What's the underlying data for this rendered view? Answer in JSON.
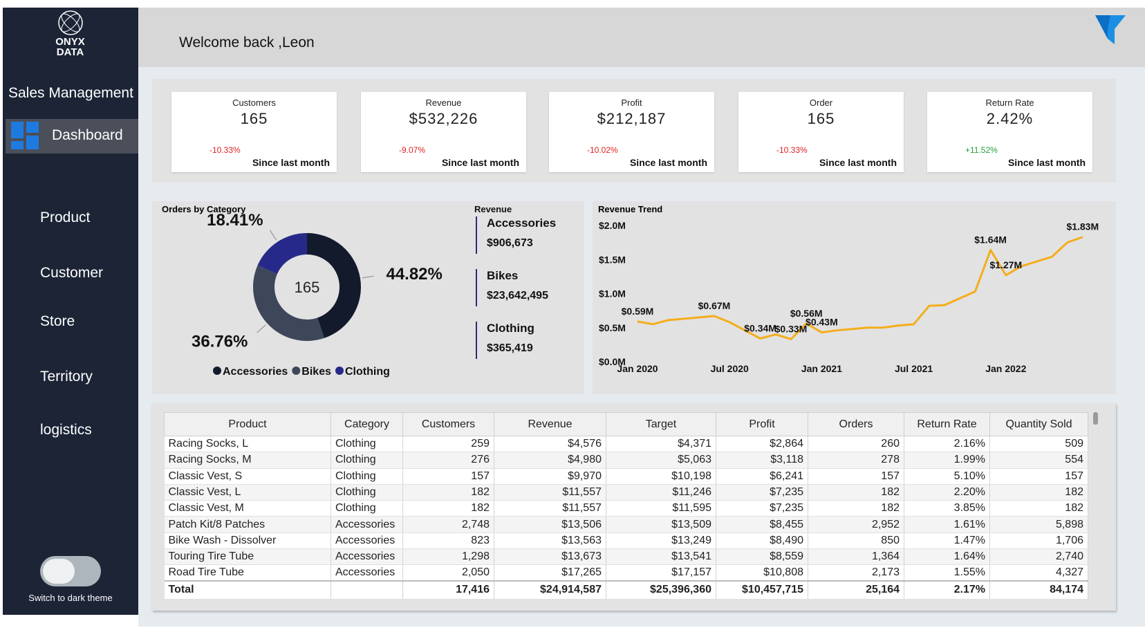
{
  "header": {
    "brand": "ONYX DATA",
    "welcome": "Welcome back ,Leon"
  },
  "sidebar": {
    "title": "Sales Management",
    "active": "Dashboard",
    "items": [
      "Product",
      "Customer",
      "Store",
      "Territory",
      "logistics"
    ],
    "toggle": "Switch to dark theme"
  },
  "kpis": [
    {
      "label": "Customers",
      "value": "165",
      "change": "-10.33%",
      "note": "Since last month"
    },
    {
      "label": "Revenue",
      "value": "$532,226",
      "change": "-9.07%",
      "note": "Since last month"
    },
    {
      "label": "Profit",
      "value": "$212,187",
      "change": "-10.02%",
      "note": "Since last month"
    },
    {
      "label": "Order",
      "value": "165",
      "change": "-10.33%",
      "note": "Since last month"
    },
    {
      "label": "Return Rate",
      "value": "2.42%",
      "change": "+11.52%",
      "note": "Since last month"
    }
  ],
  "revenue_by_category": {
    "title": "Revenue",
    "items": [
      {
        "name": "Accessories",
        "value": "$906,673"
      },
      {
        "name": "Bikes",
        "value": "$23,642,495"
      },
      {
        "name": "Clothing",
        "value": "$365,419"
      }
    ]
  },
  "chart_data": [
    {
      "type": "donut",
      "title": "Orders by Category",
      "center_label": "165",
      "categories": [
        "Accessories",
        "Bikes",
        "Clothing"
      ],
      "values": [
        44.82,
        36.76,
        18.41
      ],
      "value_labels": [
        "44.82%",
        "36.76%",
        "18.41%"
      ],
      "colors": [
        "#131a2c",
        "#3e475a",
        "#27298a"
      ]
    },
    {
      "type": "line",
      "title": "Revenue Trend",
      "color": "#f5ad1b",
      "categories": [
        "Jan 2020",
        null,
        null,
        null,
        null,
        null,
        "Jul 2020",
        null,
        null,
        null,
        null,
        null,
        "Jan 2021",
        null,
        null,
        null,
        null,
        null,
        "Jul 2021",
        null,
        null,
        null,
        null,
        null,
        "Jan 2022",
        null,
        null,
        null,
        null,
        null
      ],
      "values": [
        0.59,
        0.55,
        0.61,
        0.63,
        0.65,
        0.67,
        0.58,
        0.46,
        0.34,
        0.4,
        0.33,
        0.56,
        0.43,
        0.46,
        0.48,
        0.5,
        0.5,
        0.53,
        0.55,
        0.82,
        0.83,
        0.93,
        1.03,
        1.64,
        1.27,
        1.4,
        1.47,
        1.54,
        1.75,
        1.83
      ],
      "value_labels": [
        "$0.59M",
        null,
        null,
        null,
        null,
        "$0.67M",
        null,
        null,
        "$0.34M",
        null,
        "$0.33M",
        "$0.56M",
        "$0.43M",
        null,
        null,
        null,
        null,
        null,
        null,
        null,
        null,
        null,
        null,
        "$1.64M",
        "$1.27M",
        null,
        null,
        null,
        null,
        "$1.83M"
      ],
      "ylim": [
        0,
        2
      ],
      "yticks": [
        {
          "value": 0,
          "label": "$0.0M"
        },
        {
          "value": 0.5,
          "label": "$0.5M"
        },
        {
          "value": 1,
          "label": "$1.0M"
        },
        {
          "value": 1.5,
          "label": "$1.5M"
        },
        {
          "value": 2,
          "label": "$2.0M"
        }
      ]
    }
  ],
  "table": {
    "columns": [
      "Product",
      "Category",
      "Customers",
      "Revenue",
      "Target",
      "Profit",
      "Orders",
      "Return Rate",
      "Quantity Sold"
    ],
    "rows": [
      [
        "Racing Socks, L",
        "Clothing",
        "259",
        "$4,576",
        "$4,371",
        "$2,864",
        "260",
        "2.16%",
        "509"
      ],
      [
        "Racing Socks, M",
        "Clothing",
        "276",
        "$4,980",
        "$5,063",
        "$3,118",
        "278",
        "1.99%",
        "554"
      ],
      [
        "Classic Vest, S",
        "Clothing",
        "157",
        "$9,970",
        "$10,198",
        "$6,241",
        "157",
        "5.10%",
        "157"
      ],
      [
        "Classic Vest, L",
        "Clothing",
        "182",
        "$11,557",
        "$11,246",
        "$7,235",
        "182",
        "2.20%",
        "182"
      ],
      [
        "Classic Vest, M",
        "Clothing",
        "182",
        "$11,557",
        "$11,595",
        "$7,235",
        "182",
        "3.85%",
        "182"
      ],
      [
        "Patch Kit/8 Patches",
        "Accessories",
        "2,748",
        "$13,506",
        "$13,509",
        "$8,455",
        "2,952",
        "1.61%",
        "5,898"
      ],
      [
        "Bike Wash - Dissolver",
        "Accessories",
        "823",
        "$13,563",
        "$13,249",
        "$8,490",
        "850",
        "1.47%",
        "1,706"
      ],
      [
        "Touring Tire Tube",
        "Accessories",
        "1,298",
        "$13,673",
        "$13,541",
        "$8,559",
        "1,364",
        "1.64%",
        "2,740"
      ],
      [
        "Road Tire Tube",
        "Accessories",
        "2,050",
        "$17,265",
        "$17,157",
        "$10,808",
        "2,173",
        "1.55%",
        "4,327"
      ]
    ],
    "total": {
      "label": "Total",
      "values": [
        "17,416",
        "$24,914,587",
        "$25,396,360",
        "$10,457,715",
        "25,164",
        "2.17%",
        "84,174"
      ]
    }
  }
}
